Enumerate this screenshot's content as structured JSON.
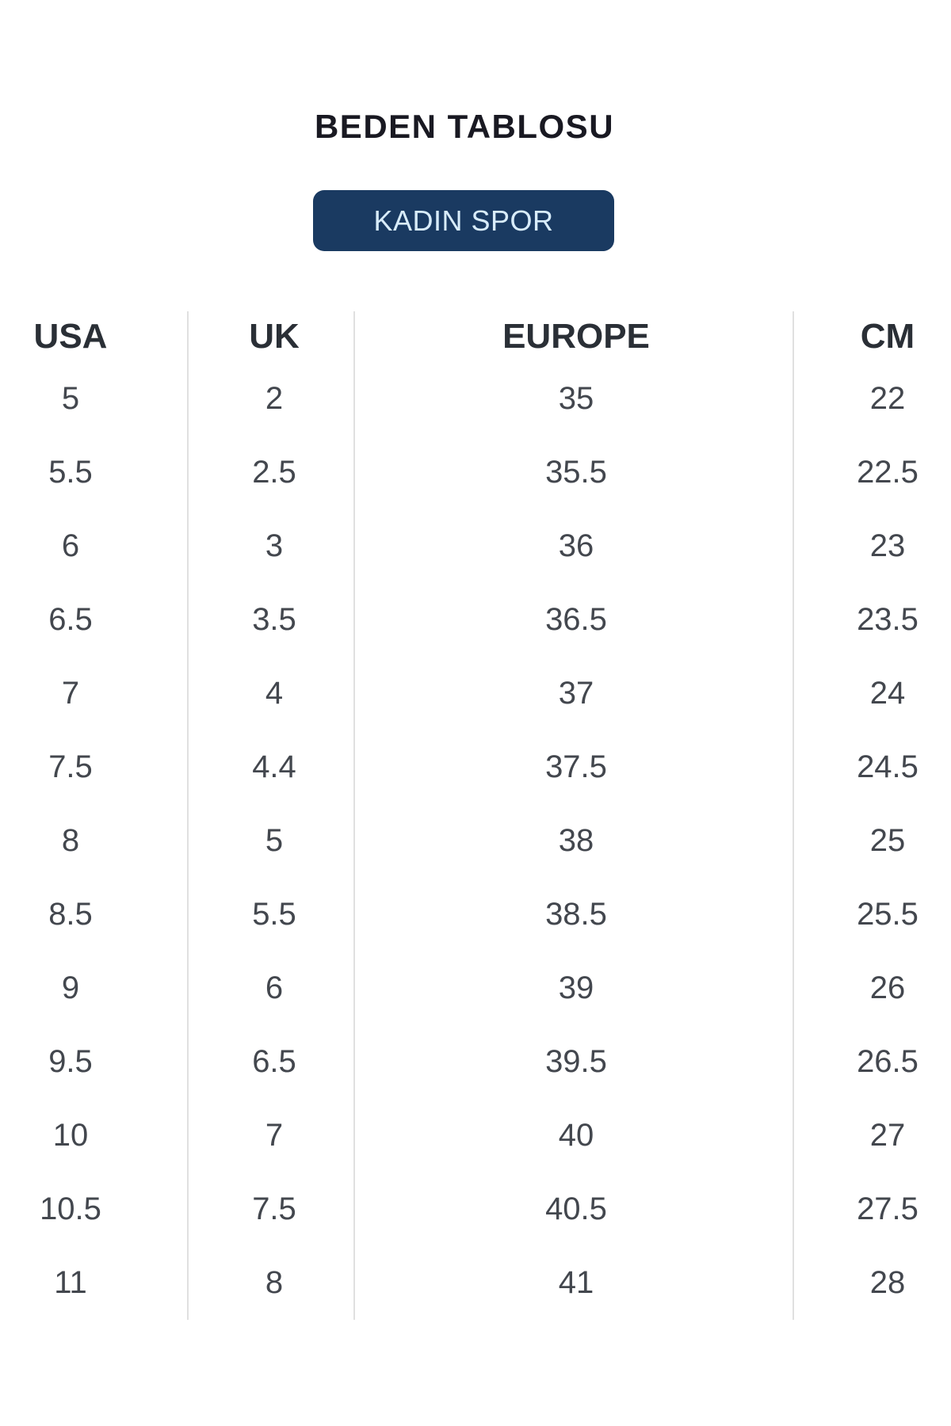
{
  "page": {
    "title": "BEDEN TABLOSU"
  },
  "category_button": {
    "label": "KADIN SPOR",
    "bg_color": "#1a3a61",
    "text_color": "#d8ecfa"
  },
  "size_table": {
    "columns": [
      "USA",
      "UK",
      "EUROPE",
      "CM"
    ],
    "rows": [
      [
        "5",
        "2",
        "35",
        "22"
      ],
      [
        "5.5",
        "2.5",
        "35.5",
        "22.5"
      ],
      [
        "6",
        "3",
        "36",
        "23"
      ],
      [
        "6.5",
        "3.5",
        "36.5",
        "23.5"
      ],
      [
        "7",
        "4",
        "37",
        "24"
      ],
      [
        "7.5",
        "4.4",
        "37.5",
        "24.5"
      ],
      [
        "8",
        "5",
        "38",
        "25"
      ],
      [
        "8.5",
        "5.5",
        "38.5",
        "25.5"
      ],
      [
        "9",
        "6",
        "39",
        "26"
      ],
      [
        "9.5",
        "6.5",
        "39.5",
        "26.5"
      ],
      [
        "10",
        "7",
        "40",
        "27"
      ],
      [
        "10.5",
        "7.5",
        "40.5",
        "27.5"
      ],
      [
        "11",
        "8",
        "41",
        "28"
      ]
    ]
  }
}
